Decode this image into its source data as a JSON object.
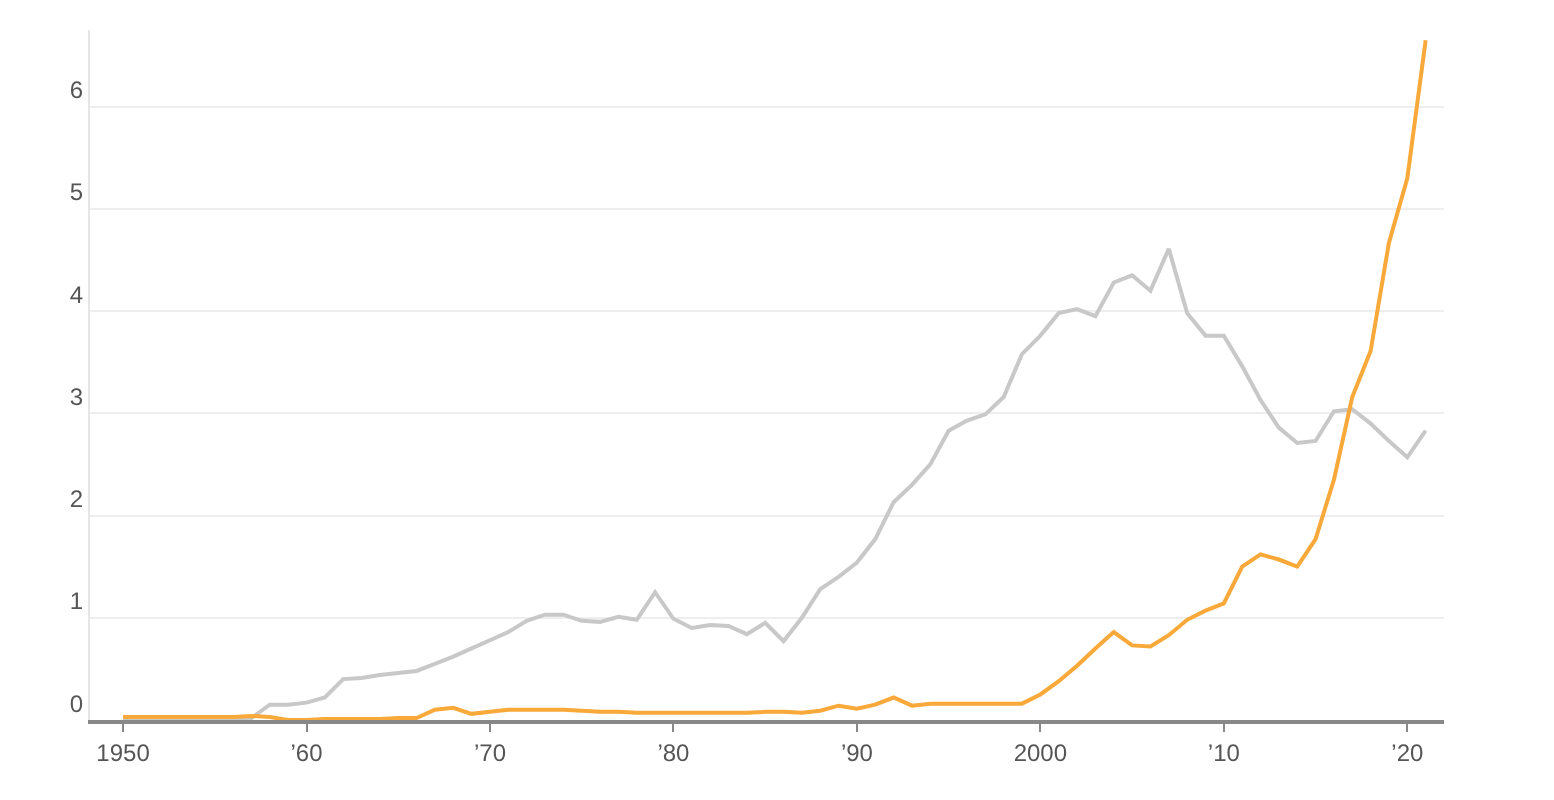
{
  "chart_data": {
    "type": "line",
    "x": [
      1950,
      1951,
      1952,
      1953,
      1954,
      1955,
      1956,
      1957,
      1958,
      1959,
      1960,
      1961,
      1962,
      1963,
      1964,
      1965,
      1966,
      1967,
      1968,
      1969,
      1970,
      1971,
      1972,
      1973,
      1974,
      1975,
      1976,
      1977,
      1978,
      1979,
      1980,
      1981,
      1982,
      1983,
      1984,
      1985,
      1986,
      1987,
      1988,
      1989,
      1990,
      1991,
      1992,
      1993,
      1994,
      1995,
      1996,
      1997,
      1998,
      1999,
      2000,
      2001,
      2002,
      2003,
      2004,
      2005,
      2006,
      2007,
      2008,
      2009,
      2010,
      2011,
      2012,
      2013,
      2014,
      2015,
      2016,
      2017,
      2018,
      2019,
      2020,
      2021
    ],
    "series": [
      {
        "color": "#c8c8c8",
        "values": [
          0,
          0,
          0,
          0,
          0,
          0,
          0,
          0.02,
          0.15,
          0.15,
          0.17,
          0.22,
          0.4,
          0.41,
          0.44,
          0.46,
          0.48,
          0.55,
          0.62,
          0.7,
          0.78,
          0.86,
          0.97,
          1.03,
          1.03,
          0.97,
          0.96,
          1.01,
          0.98,
          1.25,
          0.99,
          0.9,
          0.93,
          0.92,
          0.84,
          0.95,
          0.77,
          1.0,
          1.28,
          1.4,
          1.54,
          1.77,
          2.13,
          2.3,
          2.5,
          2.83,
          2.93,
          2.99,
          3.16,
          3.58,
          3.76,
          3.98,
          4.02,
          3.95,
          4.28,
          4.35,
          4.2,
          4.61,
          3.98,
          3.76,
          3.76,
          3.46,
          3.13,
          2.86,
          2.71,
          2.73,
          3.02,
          3.04,
          2.9,
          2.73,
          2.57,
          2.83
        ]
      },
      {
        "color": "#f9a83a",
        "values": [
          0.03,
          0.03,
          0.03,
          0.03,
          0.03,
          0.03,
          0.03,
          0.04,
          0.03,
          0.0,
          0.0,
          0.01,
          0.01,
          0.01,
          0.01,
          0.02,
          0.02,
          0.1,
          0.12,
          0.06,
          0.08,
          0.1,
          0.1,
          0.1,
          0.1,
          0.09,
          0.08,
          0.08,
          0.07,
          0.07,
          0.07,
          0.07,
          0.07,
          0.07,
          0.07,
          0.08,
          0.08,
          0.07,
          0.09,
          0.14,
          0.11,
          0.15,
          0.22,
          0.14,
          0.16,
          0.16,
          0.16,
          0.16,
          0.16,
          0.16,
          0.25,
          0.38,
          0.53,
          0.7,
          0.86,
          0.73,
          0.72,
          0.83,
          0.98,
          1.07,
          1.14,
          1.5,
          1.62,
          1.57,
          1.5,
          1.77,
          2.35,
          3.16,
          3.61,
          4.67,
          5.3,
          6.65
        ]
      }
    ],
    "xlim": [
      1948.2,
      2022
    ],
    "xticks": [
      1950,
      {
        "value": 1960,
        "label": "’60"
      },
      {
        "value": 1970,
        "label": "’70"
      },
      {
        "value": 1980,
        "label": "’80"
      },
      {
        "value": 1990,
        "label": "’90"
      },
      2000,
      {
        "value": 2010,
        "label": "’10"
      },
      {
        "value": 2020,
        "label": "’20"
      }
    ],
    "ylim": [
      0,
      6.75
    ],
    "yticks": [
      0,
      1,
      2,
      3,
      4,
      5,
      6
    ],
    "grid": "y",
    "legend": false,
    "line_style": "solid"
  }
}
